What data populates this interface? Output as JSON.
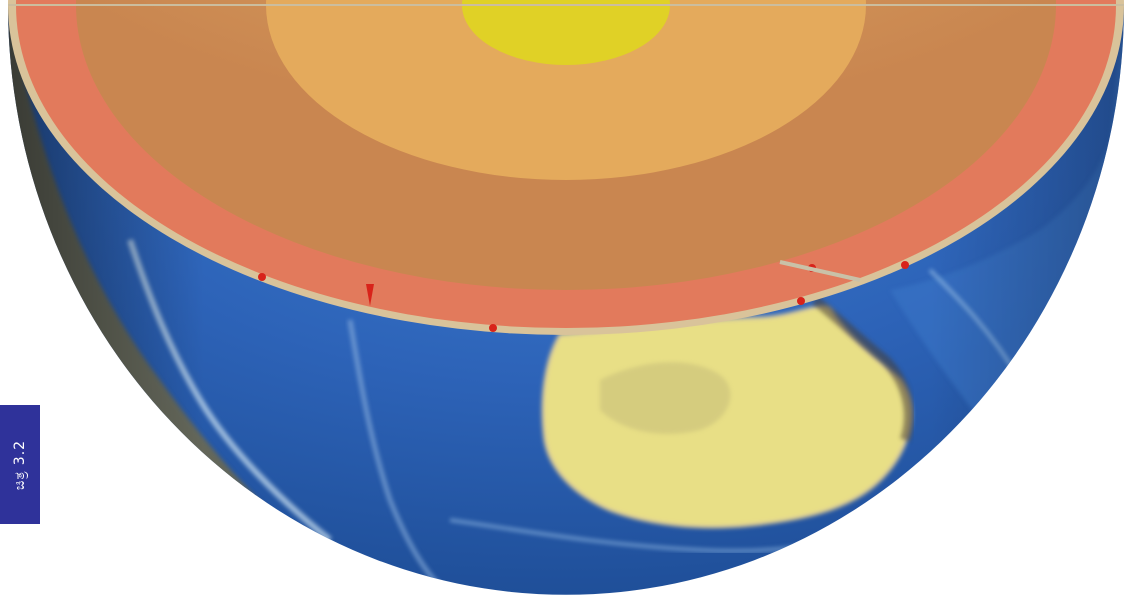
{
  "figure": {
    "side_tab_label": "ಚಿತ್ರ 3.2"
  },
  "colors": {
    "side_tab": "#2f329a",
    "crust_rim": "#d9c39a",
    "mantle_outer": "#e27a5c",
    "mantle_inner": "#cf8d5a",
    "outer_core": "#e4aa5c",
    "inner_core": "#e0d126",
    "ocean": "#2f6fc2",
    "land": "#e5e07f"
  }
}
